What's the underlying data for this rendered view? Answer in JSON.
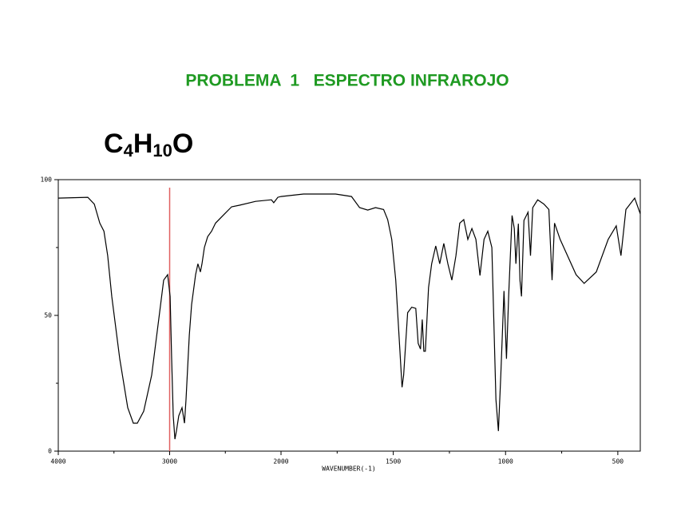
{
  "chart_data": {
    "type": "line",
    "title": "PROBLEMA  1   ESPECTRO INFRAROJO",
    "formula": [
      "C",
      "4",
      "H",
      "10",
      "O"
    ],
    "xlabel": "WAVENUMBER(-1)",
    "xlim": [
      4000,
      400
    ],
    "x_scale_change": 2000,
    "xticks": [
      4000,
      3000,
      2000,
      1500,
      1000,
      500
    ],
    "xticks_minor": [
      3500,
      2500,
      1750,
      1250,
      750
    ],
    "ylim": [
      0,
      100
    ],
    "yticks": [
      0,
      50,
      100
    ],
    "yticks_minor": [
      25,
      75
    ],
    "marker_x": 3000,
    "marker_color": "#e06060",
    "series": [
      {
        "color": "#000000",
        "x": [
          4000,
          3735,
          3677,
          3627,
          3590,
          3556,
          3520,
          3448,
          3376,
          3326,
          3290,
          3233,
          3161,
          3090,
          3054,
          3018,
          2996,
          2982,
          2968,
          2953,
          2939,
          2918,
          2889,
          2867,
          2853,
          2824,
          2803,
          2767,
          2746,
          2724,
          2710,
          2688,
          2659,
          2624,
          2588,
          2516,
          2444,
          2373,
          2229,
          2086,
          2065,
          2029,
          2000,
          1900,
          1757,
          1686,
          1650,
          1614,
          1579,
          1543,
          1525,
          1507,
          1489,
          1471,
          1461,
          1454,
          1436,
          1418,
          1400,
          1389,
          1379,
          1371,
          1364,
          1357,
          1343,
          1329,
          1311,
          1293,
          1275,
          1257,
          1239,
          1221,
          1204,
          1186,
          1168,
          1150,
          1132,
          1114,
          1096,
          1079,
          1061,
          1043,
          1032,
          1021,
          1007,
          996,
          986,
          971,
          961,
          954,
          943,
          936,
          929,
          918,
          900,
          889,
          879,
          857,
          829,
          807,
          793,
          782,
          757,
          686,
          650,
          596,
          543,
          507,
          486,
          464,
          425,
          400
        ],
        "values": [
          93.2,
          93.5,
          91,
          84,
          81,
          72,
          57,
          34,
          16,
          10.3,
          10.3,
          14.7,
          28,
          51,
          63,
          65,
          57,
          34,
          13,
          4.4,
          7.4,
          13,
          16,
          10.3,
          19,
          42.6,
          54,
          65,
          69,
          66,
          69,
          75,
          79,
          81,
          84,
          87,
          90,
          90.6,
          92,
          92.6,
          91.5,
          93.5,
          93.8,
          94.7,
          94.7,
          93.8,
          89.7,
          88.8,
          89.7,
          89,
          85.3,
          78,
          63,
          37.6,
          23.5,
          28,
          51,
          53,
          52.6,
          39.7,
          37.6,
          48.5,
          36.8,
          36.8,
          60.3,
          69,
          75.6,
          69,
          76.5,
          69,
          63,
          72,
          84,
          85.3,
          78,
          82,
          78,
          64.7,
          78,
          81,
          75,
          19,
          7.4,
          28,
          59,
          34,
          57.6,
          86.8,
          82,
          69,
          83.8,
          63,
          57,
          85,
          88,
          72,
          89.7,
          92.6,
          91,
          89,
          63,
          84,
          78,
          65,
          61.8,
          66,
          78,
          83,
          72,
          89,
          93.2,
          87.4
        ]
      }
    ]
  }
}
